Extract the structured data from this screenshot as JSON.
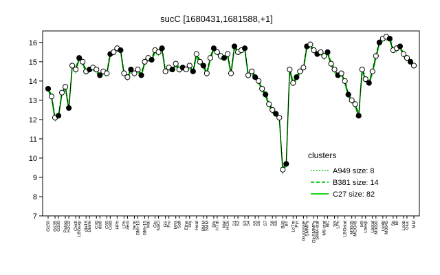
{
  "chart_data": {
    "type": "line",
    "title": "sucC [1680431,1681588,+1]",
    "xlabel": "",
    "ylabel": "",
    "ylim": [
      7,
      16.6
    ],
    "yticks": [
      7,
      8,
      9,
      10,
      11,
      12,
      13,
      14,
      15,
      16
    ],
    "grid": false,
    "legend": {
      "title": "clusters",
      "placement": "right",
      "entries": [
        {
          "label": "A949 size: 8",
          "style": "dotted",
          "color": "#00cc00"
        },
        {
          "label": "B381 size: 14",
          "style": "dashed",
          "color": "#00cc00"
        },
        {
          "label": "C27 size: 82",
          "style": "solid",
          "color": "#00cc00"
        }
      ]
    },
    "x_tick_labels": [
      "G150",
      "G135",
      "G180",
      "Paraq",
      "H2O2",
      "Oxctl",
      "LBGexp",
      "dia15",
      "Diami",
      "C30",
      "dia5",
      "C60",
      "Cold",
      "HPh",
      "LPh",
      "aero",
      "ferm",
      "GM+10",
      "GM+15",
      "Mal",
      "Glu",
      "NaCl",
      "GS",
      "Fru",
      "M/G",
      "Salt",
      "Ethe",
      "Gly",
      "Heat",
      "BMM",
      "SMM",
      "Gly",
      "HTm",
      "Mal",
      "HOx",
      "S1",
      "S2",
      "S3",
      "S4",
      "S5",
      "S6",
      "S7",
      "S8",
      "S9",
      "B40",
      "BT",
      "LoTm",
      "Pyr",
      "Gluconate",
      "SMMPy",
      "GlcSMMPy",
      "SMM-stat",
      "M9-stat",
      "BC",
      "Sw",
      "LPh",
      "LBGstat",
      "M0045",
      "MOO45",
      "M9",
      "Lbexp",
      "Lbstat",
      "M0090",
      "Lsobl",
      "M0045",
      "Sb",
      "BI",
      "Lsob",
      "Gluc",
      "MM"
    ],
    "points": [
      [
        0,
        13.6
      ],
      [
        1,
        13.2
      ],
      [
        2,
        12.1
      ],
      [
        3,
        12.2
      ],
      [
        4,
        13.4
      ],
      [
        5,
        13.7
      ],
      [
        6,
        12.6
      ],
      [
        7,
        14.8
      ],
      [
        8,
        14.6
      ],
      [
        9,
        15.2
      ],
      [
        10,
        15.0
      ],
      [
        11,
        14.5
      ],
      [
        12,
        14.6
      ],
      [
        13,
        14.7
      ],
      [
        14,
        14.6
      ],
      [
        15,
        14.3
      ],
      [
        16,
        14.5
      ],
      [
        17,
        14.4
      ],
      [
        18,
        15.4
      ],
      [
        19,
        15.5
      ],
      [
        20,
        15.7
      ],
      [
        21,
        15.6
      ],
      [
        22,
        14.4
      ],
      [
        23,
        14.2
      ],
      [
        24,
        14.6
      ],
      [
        25,
        14.4
      ],
      [
        26,
        14.6
      ],
      [
        27,
        14.3
      ],
      [
        28,
        15.0
      ],
      [
        29,
        15.2
      ],
      [
        30,
        15.1
      ],
      [
        31,
        15.6
      ],
      [
        32,
        15.5
      ],
      [
        33,
        15.7
      ],
      [
        34,
        14.5
      ],
      [
        35,
        14.7
      ],
      [
        36,
        14.6
      ],
      [
        37,
        14.9
      ],
      [
        38,
        14.6
      ],
      [
        39,
        14.7
      ],
      [
        40,
        14.6
      ],
      [
        41,
        14.8
      ],
      [
        42,
        14.5
      ],
      [
        43,
        15.4
      ],
      [
        44,
        15.0
      ],
      [
        45,
        14.8
      ],
      [
        46,
        14.4
      ],
      [
        47,
        15.2
      ],
      [
        48,
        15.7
      ],
      [
        49,
        15.5
      ],
      [
        50,
        15.3
      ],
      [
        51,
        15.2
      ],
      [
        52,
        15.4
      ],
      [
        53,
        14.4
      ],
      [
        54,
        15.8
      ],
      [
        55,
        15.5
      ],
      [
        56,
        15.6
      ],
      [
        57,
        15.7
      ],
      [
        58,
        14.3
      ],
      [
        59,
        14.5
      ],
      [
        60,
        14.2
      ],
      [
        61,
        14.0
      ],
      [
        62,
        13.6
      ],
      [
        63,
        13.3
      ],
      [
        64,
        12.8
      ],
      [
        65,
        12.5
      ],
      [
        66,
        12.3
      ],
      [
        67,
        12.1
      ],
      [
        68,
        9.4
      ],
      [
        69,
        9.7
      ],
      [
        70,
        14.6
      ],
      [
        71,
        13.9
      ],
      [
        72,
        14.2
      ],
      [
        73,
        14.5
      ],
      [
        74,
        14.7
      ],
      [
        75,
        15.8
      ],
      [
        76,
        15.9
      ],
      [
        77,
        15.6
      ],
      [
        78,
        15.4
      ],
      [
        79,
        15.5
      ],
      [
        80,
        15.3
      ],
      [
        81,
        15.5
      ],
      [
        82,
        14.9
      ],
      [
        83,
        14.6
      ],
      [
        84,
        14.3
      ],
      [
        85,
        14.4
      ],
      [
        86,
        14.0
      ],
      [
        87,
        13.3
      ],
      [
        88,
        13.0
      ],
      [
        89,
        12.8
      ],
      [
        90,
        12.2
      ],
      [
        91,
        14.6
      ],
      [
        92,
        14.1
      ],
      [
        93,
        13.9
      ],
      [
        94,
        14.5
      ],
      [
        95,
        15.3
      ],
      [
        96,
        16.0
      ],
      [
        97,
        16.2
      ],
      [
        98,
        16.3
      ],
      [
        99,
        16.2
      ],
      [
        100,
        15.6
      ],
      [
        101,
        15.7
      ],
      [
        102,
        15.8
      ],
      [
        103,
        15.4
      ],
      [
        104,
        15.2
      ],
      [
        105,
        15.0
      ],
      [
        106,
        14.8
      ]
    ]
  }
}
